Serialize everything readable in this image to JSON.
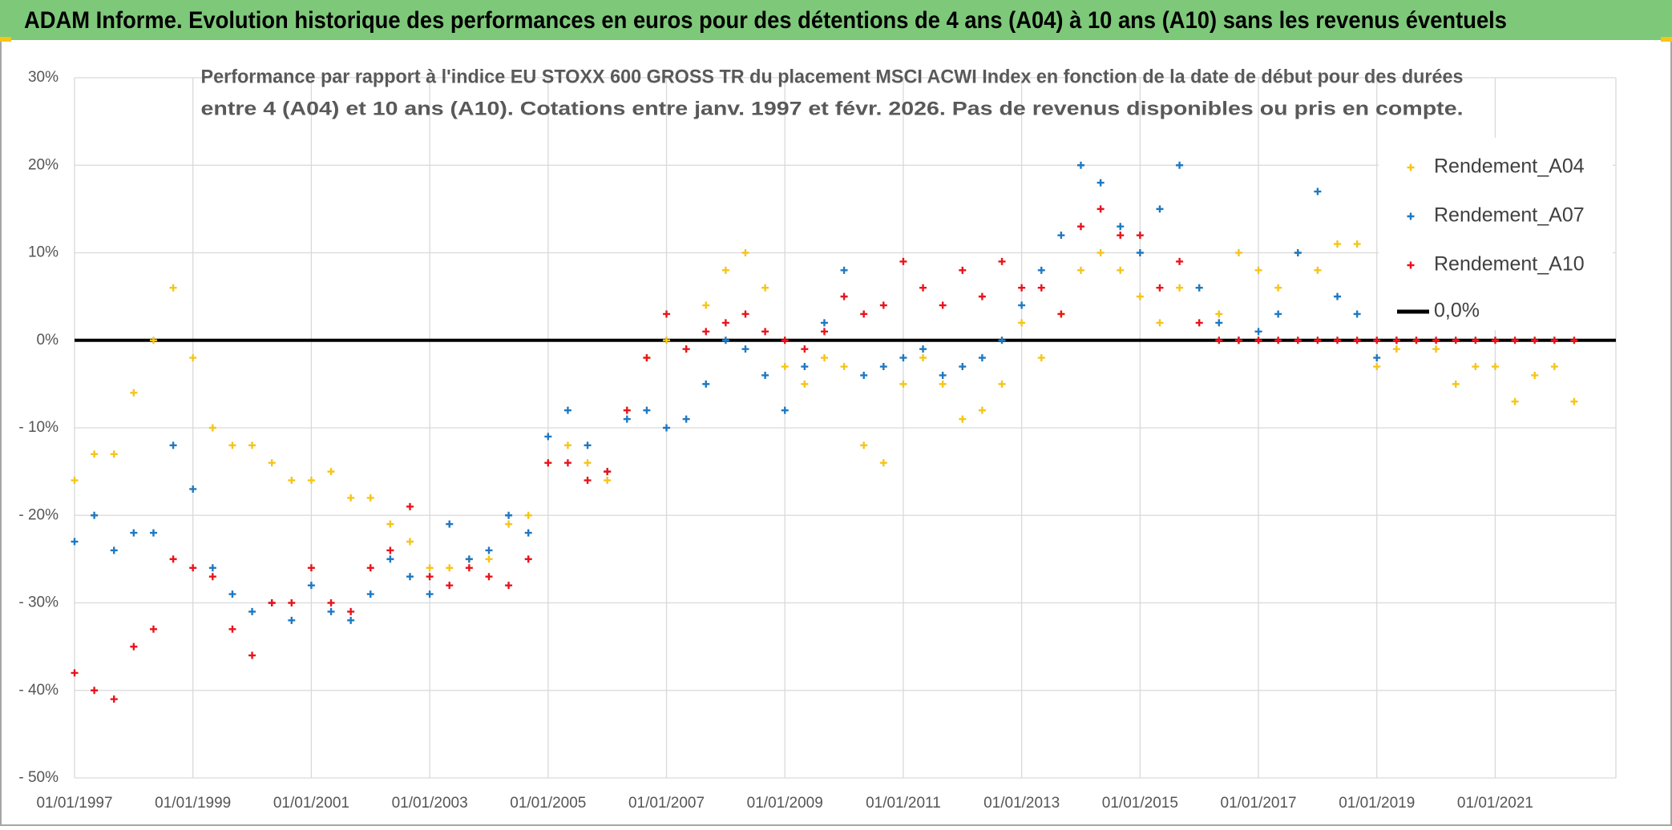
{
  "header": {
    "title": "ADAM Informe. Evolution historique des performances en euros pour des détentions de 4 ans (A04) à 10 ans (A10) sans les revenus éventuels"
  },
  "chart_data": {
    "type": "scatter",
    "subtitle": [
      "Performance par rapport à l'indice EU STOXX 600 GROSS TR  du placement MSCI ACWI Index en fonction de la date de début pour des durées",
      "entre 4 (A04) et 10 ans (A10). Cotations entre janv. 1997 et févr. 2026. Pas de revenus disponibles ou pris en compte."
    ],
    "x": [
      "01/01/1997",
      "01/05/1997",
      "01/09/1997",
      "01/01/1998",
      "01/05/1998",
      "01/09/1998",
      "01/01/1999",
      "01/05/1999",
      "01/09/1999",
      "01/01/2000",
      "01/05/2000",
      "01/09/2000",
      "01/01/2001",
      "01/05/2001",
      "01/09/2001",
      "01/01/2002",
      "01/05/2002",
      "01/09/2002",
      "01/01/2003",
      "01/05/2003",
      "01/09/2003",
      "01/01/2004",
      "01/05/2004",
      "01/09/2004",
      "01/01/2005",
      "01/05/2005",
      "01/09/2005",
      "01/01/2006",
      "01/05/2006",
      "01/09/2006",
      "01/01/2007",
      "01/05/2007",
      "01/09/2007",
      "01/01/2008",
      "01/05/2008",
      "01/09/2008",
      "01/01/2009",
      "01/05/2009",
      "01/09/2009",
      "01/01/2010",
      "01/05/2010",
      "01/09/2010",
      "01/01/2011",
      "01/05/2011",
      "01/09/2011",
      "01/01/2012",
      "01/05/2012",
      "01/09/2012",
      "01/01/2013",
      "01/05/2013",
      "01/09/2013",
      "01/01/2014",
      "01/05/2014",
      "01/09/2014",
      "01/01/2015",
      "01/05/2015",
      "01/09/2015",
      "01/01/2016",
      "01/05/2016",
      "01/09/2016",
      "01/01/2017",
      "01/05/2017",
      "01/09/2017",
      "01/01/2018",
      "01/05/2018",
      "01/09/2018",
      "01/01/2019",
      "01/05/2019",
      "01/09/2019",
      "01/01/2020",
      "01/05/2020",
      "01/09/2020",
      "01/01/2021",
      "01/05/2021",
      "01/09/2021",
      "01/01/2022",
      "01/05/2022"
    ],
    "series": [
      {
        "name": "Rendement_A04",
        "color": "#f5c518",
        "values": [
          -16,
          -13,
          -13,
          -6,
          0,
          6,
          -2,
          -10,
          -12,
          -12,
          -14,
          -16,
          -16,
          -15,
          -18,
          -18,
          -21,
          -23,
          -26,
          -26,
          -25,
          -25,
          -21,
          -20,
          -14,
          -12,
          -14,
          -16,
          -8,
          -2,
          0,
          -1,
          4,
          8,
          10,
          6,
          -3,
          -5,
          -2,
          -3,
          -12,
          -14,
          -5,
          -2,
          -5,
          -9,
          -8,
          -5,
          2,
          -2,
          3,
          8,
          10,
          8,
          5,
          2,
          6,
          6,
          3,
          10,
          8,
          6,
          10,
          8,
          11,
          11,
          -3,
          -1,
          0,
          -1,
          -5,
          -3,
          -3,
          -7,
          -4,
          -3,
          -7
        ]
      },
      {
        "name": "Rendement_A07",
        "color": "#1f78c1",
        "values": [
          -23,
          -20,
          -24,
          -22,
          -22,
          -12,
          -17,
          -26,
          -29,
          -31,
          -30,
          -32,
          -28,
          -31,
          -32,
          -29,
          -25,
          -27,
          -29,
          -21,
          -25,
          -24,
          -20,
          -22,
          -11,
          -8,
          -12,
          -15,
          -9,
          -8,
          -10,
          -9,
          -5,
          0,
          -1,
          -4,
          -8,
          -3,
          2,
          8,
          -4,
          -3,
          -2,
          -1,
          -4,
          -3,
          -2,
          0,
          4,
          8,
          12,
          20,
          18,
          13,
          10,
          15,
          20,
          6,
          2,
          0,
          1,
          3,
          10,
          17,
          5,
          3,
          -2,
          0,
          null,
          null,
          null,
          null,
          null,
          null,
          null,
          null,
          null
        ]
      },
      {
        "name": "Rendement_A10",
        "color": "#e8141c",
        "values": [
          -38,
          -40,
          -41,
          -35,
          -33,
          -25,
          -26,
          -27,
          -33,
          -36,
          -30,
          -30,
          -26,
          -30,
          -31,
          -26,
          -24,
          -19,
          -27,
          -28,
          -26,
          -27,
          -28,
          -25,
          -14,
          -14,
          -16,
          -15,
          -8,
          -2,
          3,
          -1,
          1,
          2,
          3,
          1,
          0,
          -1,
          1,
          5,
          3,
          4,
          9,
          6,
          4,
          8,
          5,
          9,
          6,
          6,
          3,
          13,
          15,
          12,
          12,
          6,
          9,
          2,
          0,
          0,
          0,
          0,
          0,
          0,
          0,
          0,
          0,
          0,
          0,
          0,
          0,
          0,
          0,
          0,
          0,
          0,
          0
        ]
      }
    ],
    "reference_line": {
      "value": 0,
      "label": "0,0%",
      "color": "#000000"
    },
    "xlim": [
      "01/01/1997",
      "15/01/2023"
    ],
    "xticks": [
      "01/01/1997",
      "01/01/1999",
      "01/01/2001",
      "01/01/2003",
      "01/01/2005",
      "01/01/2007",
      "01/01/2009",
      "01/01/2011",
      "01/01/2013",
      "01/01/2015",
      "01/01/2017",
      "01/01/2019",
      "01/01/2021"
    ],
    "ylim": [
      -50,
      30
    ],
    "yticks": [
      {
        "value": 30,
        "label": "30%"
      },
      {
        "value": 20,
        "label": "20%"
      },
      {
        "value": 10,
        "label": "10%"
      },
      {
        "value": 0,
        "label": "0%"
      },
      {
        "value": -10,
        "label": "- 10%"
      },
      {
        "value": -20,
        "label": "- 20%"
      },
      {
        "value": -30,
        "label": "- 30%"
      },
      {
        "value": -40,
        "label": "- 40%"
      },
      {
        "value": -50,
        "label": "- 50%"
      }
    ],
    "grid": true,
    "legend": "upper right"
  }
}
